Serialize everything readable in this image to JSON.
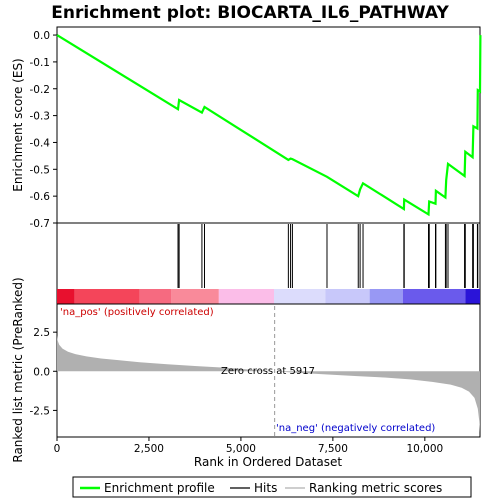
{
  "chart_data": {
    "type": "line",
    "title": "Enrichment plot: BIOCARTA_IL6_PATHWAY",
    "x_max": 11500,
    "top_panel": {
      "ylabel": "Enrichment score (ES)",
      "ylim": [
        -0.7,
        0.03
      ],
      "yticks": [
        0.0,
        -0.1,
        -0.2,
        -0.3,
        -0.4,
        -0.5,
        -0.6,
        -0.7
      ],
      "ytick_labels": [
        "0.0",
        "-0.1",
        "-0.2",
        "-0.3",
        "-0.4",
        "-0.5",
        "-0.6",
        "-0.7"
      ],
      "series": [
        {
          "name": "Enrichment profile",
          "color": "#00ff00",
          "points": [
            [
              0,
              0.0
            ],
            [
              3290,
              -0.276
            ],
            [
              3320,
              -0.242
            ],
            [
              3940,
              -0.289
            ],
            [
              4010,
              -0.268
            ],
            [
              6290,
              -0.465
            ],
            [
              6350,
              -0.46
            ],
            [
              6400,
              -0.462
            ],
            [
              7340,
              -0.528
            ],
            [
              8190,
              -0.6
            ],
            [
              8240,
              -0.575
            ],
            [
              8320,
              -0.552
            ],
            [
              9430,
              -0.648
            ],
            [
              9440,
              -0.613
            ],
            [
              10100,
              -0.668
            ],
            [
              10120,
              -0.62
            ],
            [
              10290,
              -0.628
            ],
            [
              10300,
              -0.58
            ],
            [
              10560,
              -0.605
            ],
            [
              10580,
              -0.54
            ],
            [
              10630,
              -0.48
            ],
            [
              11080,
              -0.525
            ],
            [
              11100,
              -0.435
            ],
            [
              11300,
              -0.455
            ],
            [
              11320,
              -0.34
            ],
            [
              11430,
              -0.348
            ],
            [
              11440,
              -0.205
            ],
            [
              11500,
              -0.21
            ],
            [
              11510,
              0.0
            ]
          ]
        }
      ],
      "hits": [
        3290,
        3320,
        3940,
        4010,
        6290,
        6350,
        6400,
        7340,
        8190,
        8240,
        8320,
        9430,
        9440,
        10100,
        10120,
        10290,
        10300,
        10560,
        10580,
        10630,
        11080,
        11100,
        11300,
        11320,
        11430,
        11440
      ]
    },
    "colorbar": {
      "segments": [
        {
          "from": 0,
          "to": 480,
          "color": "#e8102e"
        },
        {
          "from": 480,
          "to": 2250,
          "color": "#f4455a"
        },
        {
          "from": 2250,
          "to": 3100,
          "color": "#f66a80"
        },
        {
          "from": 3100,
          "to": 4400,
          "color": "#f98a9a"
        },
        {
          "from": 4400,
          "to": 5900,
          "color": "#fbbde8"
        },
        {
          "from": 5900,
          "to": 7300,
          "color": "#dcdcfc"
        },
        {
          "from": 7300,
          "to": 8500,
          "color": "#c8c8fa"
        },
        {
          "from": 8500,
          "to": 9400,
          "color": "#9898f4"
        },
        {
          "from": 9400,
          "to": 11100,
          "color": "#6a5aec"
        },
        {
          "from": 11100,
          "to": 11500,
          "color": "#2a14d8"
        }
      ]
    },
    "bottom_panel": {
      "ylabel": "Ranked list metric (PreRanked)",
      "xlabel": "Rank in Ordered Dataset",
      "ylim": [
        -4.2,
        4.3
      ],
      "yticks": [
        2.5,
        0.0,
        -2.5
      ],
      "ytick_labels": [
        "2.5",
        "0.0",
        "-2.5"
      ],
      "xticks": [
        0,
        2500,
        5000,
        7500,
        10000
      ],
      "xtick_labels": [
        "0",
        "2,500",
        "5,000",
        "7,500",
        "10,000"
      ],
      "metric_color": "#b0b0b0",
      "metric_points": [
        [
          0,
          2.3
        ],
        [
          20,
          1.95
        ],
        [
          60,
          1.7
        ],
        [
          150,
          1.45
        ],
        [
          300,
          1.25
        ],
        [
          500,
          1.1
        ],
        [
          800,
          0.95
        ],
        [
          1200,
          0.82
        ],
        [
          1700,
          0.7
        ],
        [
          2250,
          0.58
        ],
        [
          3000,
          0.45
        ],
        [
          3800,
          0.33
        ],
        [
          4600,
          0.22
        ],
        [
          5400,
          0.08
        ],
        [
          5917,
          0.0
        ],
        [
          6500,
          -0.1
        ],
        [
          7300,
          -0.2
        ],
        [
          8100,
          -0.3
        ],
        [
          8900,
          -0.4
        ],
        [
          9600,
          -0.52
        ],
        [
          10200,
          -0.68
        ],
        [
          10700,
          -0.85
        ],
        [
          11000,
          -1.05
        ],
        [
          11200,
          -1.3
        ],
        [
          11350,
          -1.7
        ],
        [
          11440,
          -2.4
        ],
        [
          11480,
          -3.2
        ],
        [
          11500,
          -3.9
        ]
      ],
      "zero_cross_label": "Zero cross at 5917",
      "zero_cross_rank": 5917,
      "pos_label": "'na_pos' (positively correlated)",
      "pos_color": "#cc0000",
      "neg_label": "'na_neg' (negatively correlated)",
      "neg_color": "#0000cc"
    },
    "legend": {
      "placement": "bottom",
      "entries": [
        {
          "label": "Enrichment profile",
          "color": "#00ff00",
          "kind": "line-thick"
        },
        {
          "label": "Hits",
          "color": "#000000",
          "kind": "line"
        },
        {
          "label": "Ranking metric scores",
          "color": "#b0b0b0",
          "kind": "line"
        }
      ]
    }
  }
}
